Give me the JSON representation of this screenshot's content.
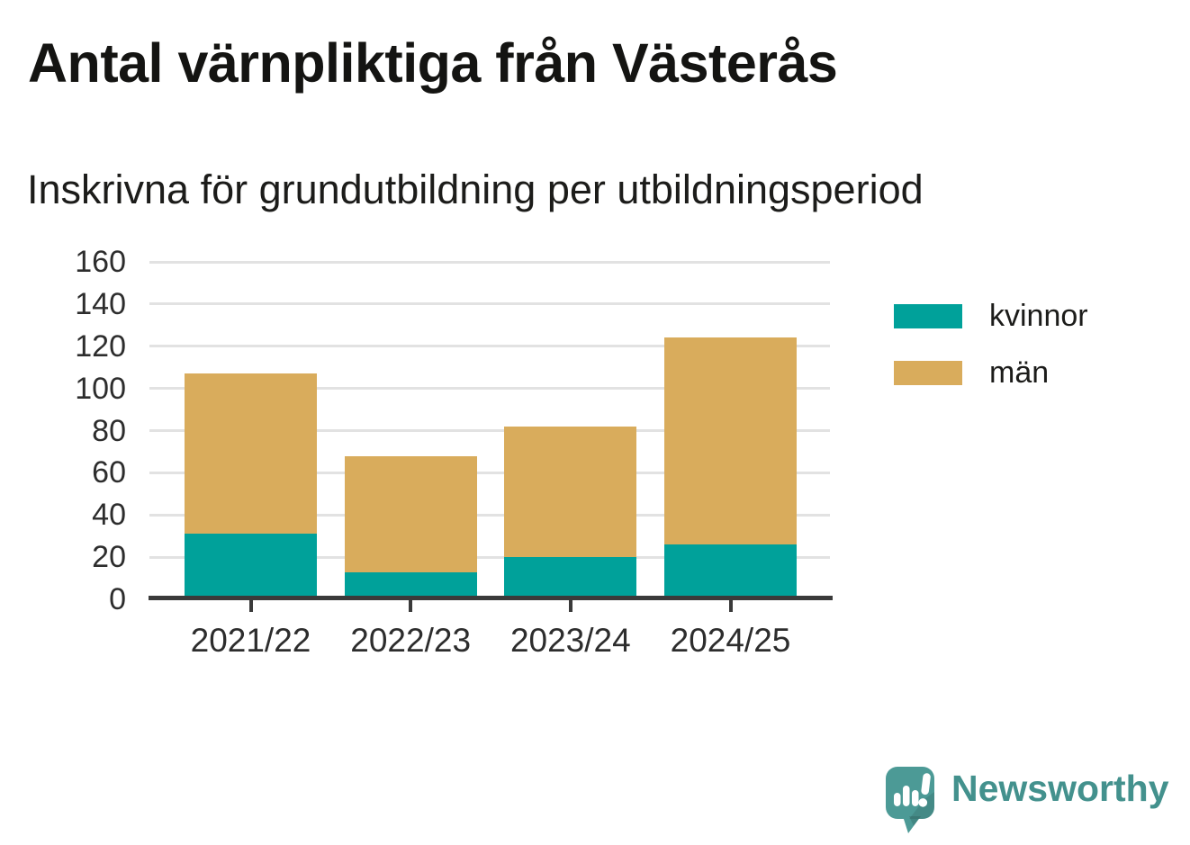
{
  "header": {
    "title": "Antal värnpliktiga från Västerås",
    "subtitle": "Inskrivna för grundutbildning per utbildningsperiod"
  },
  "chart_data": {
    "type": "bar",
    "stacked": true,
    "title": "Antal värnpliktiga från Västerås",
    "subtitle": "Inskrivna för grundutbildning per utbildningsperiod",
    "categories": [
      "2021/22",
      "2022/23",
      "2023/24",
      "2024/25"
    ],
    "series": [
      {
        "name": "kvinnor",
        "color": "#00A19A",
        "values": [
          31,
          13,
          20,
          26
        ]
      },
      {
        "name": "män",
        "color": "#D9AC5C",
        "values": [
          76,
          55,
          62,
          98
        ]
      }
    ],
    "stack_totals": [
      107,
      68,
      82,
      124
    ],
    "ylim": [
      0,
      160
    ],
    "yticks": [
      0,
      20,
      40,
      60,
      80,
      100,
      120,
      140,
      160
    ],
    "xlabel": "",
    "ylabel": "",
    "grid": true,
    "legend_position": "right"
  },
  "legend": {
    "items": [
      {
        "label": "kvinnor",
        "color": "#00A19A"
      },
      {
        "label": "män",
        "color": "#D9AC5C"
      }
    ]
  },
  "branding": {
    "logo_text": "Newsworthy",
    "logo_color": "#43918D",
    "icon": "newsworthy-speech-bubble-chart-icon"
  },
  "colors": {
    "background": "#FFFFFF",
    "kvinnor_teal": "#00A19A",
    "men_gold": "#D9AC5C",
    "gridline": "#E2E2E2",
    "axis": "#3A3A3A",
    "text_dark": "#1C1C1A",
    "logo_bubble": "#4C9A96"
  }
}
